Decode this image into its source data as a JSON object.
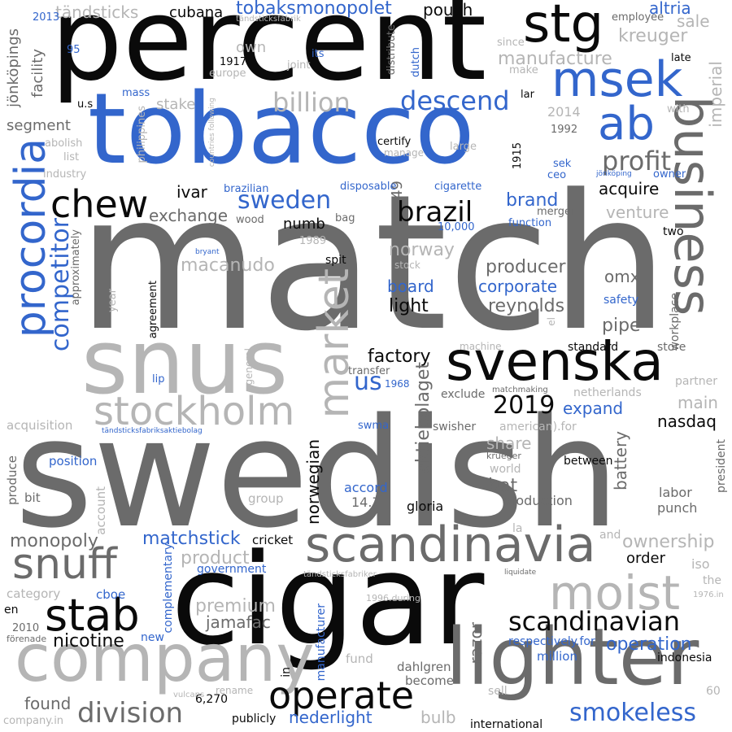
{
  "palette": {
    "black": "#0a0a0a",
    "dark_gray": "#6b6b6b",
    "light_gray": "#b5b5b5",
    "blue": "#3366cc"
  },
  "words": [
    {
      "text": "match",
      "color": "dark_gray"
    },
    {
      "text": "swedish",
      "color": "dark_gray"
    },
    {
      "text": "percent",
      "color": "black"
    },
    {
      "text": "tobacco",
      "color": "blue"
    },
    {
      "text": "cigar",
      "color": "black"
    },
    {
      "text": "snus",
      "color": "light_gray"
    },
    {
      "text": "company",
      "color": "light_gray"
    },
    {
      "text": "lighter",
      "color": "dark_gray"
    },
    {
      "text": "svenska",
      "color": "black"
    },
    {
      "text": "business",
      "color": "dark_gray"
    },
    {
      "text": "procordia",
      "color": "blue"
    },
    {
      "text": "scandinavia",
      "color": "dark_gray"
    },
    {
      "text": "market",
      "color": "light_gray"
    },
    {
      "text": "stg",
      "color": "black"
    },
    {
      "text": "msek",
      "color": "blue"
    },
    {
      "text": "ab",
      "color": "blue"
    },
    {
      "text": "stockholm",
      "color": "light_gray"
    },
    {
      "text": "snuff",
      "color": "dark_gray"
    },
    {
      "text": "moist",
      "color": "light_gray"
    },
    {
      "text": "stab",
      "color": "black"
    },
    {
      "text": "operate",
      "color": "black"
    },
    {
      "text": "chew",
      "color": "black"
    },
    {
      "text": "scandinavian",
      "color": "black"
    },
    {
      "text": "division",
      "color": "dark_gray"
    },
    {
      "text": "brazil",
      "color": "black"
    },
    {
      "text": "billion",
      "color": "light_gray"
    },
    {
      "text": "descend",
      "color": "blue"
    },
    {
      "text": "profit",
      "color": "dark_gray"
    },
    {
      "text": "competitor",
      "color": "blue"
    },
    {
      "text": "smokeless",
      "color": "blue"
    },
    {
      "text": "2019",
      "color": "black"
    },
    {
      "text": "sweden",
      "color": "blue"
    },
    {
      "text": "tobaksmonopolet",
      "color": "blue"
    },
    {
      "text": "kreuger",
      "color": "light_gray"
    },
    {
      "text": "manufacture",
      "color": "light_gray"
    },
    {
      "text": "us",
      "color": "blue"
    },
    {
      "text": "monopoly",
      "color": "dark_gray"
    },
    {
      "text": "operation",
      "color": "blue"
    },
    {
      "text": "ownership",
      "color": "light_gray"
    },
    {
      "text": "nicotine",
      "color": "black"
    },
    {
      "text": "premium",
      "color": "light_gray"
    },
    {
      "text": "matchstick",
      "color": "blue"
    },
    {
      "text": "product",
      "color": "light_gray"
    },
    {
      "text": "altria",
      "color": "blue"
    },
    {
      "text": "sale",
      "color": "light_gray"
    },
    {
      "text": "imperial",
      "color": "light_gray"
    },
    {
      "text": "factory",
      "color": "black"
    },
    {
      "text": "producer",
      "color": "dark_gray"
    },
    {
      "text": "reynolds",
      "color": "dark_gray"
    },
    {
      "text": "aktiebolaget",
      "color": "dark_gray"
    },
    {
      "text": "norwegian",
      "color": "black"
    },
    {
      "text": "battery",
      "color": "dark_gray"
    },
    {
      "text": "razor",
      "color": "dark_gray"
    },
    {
      "text": "brand",
      "color": "blue"
    },
    {
      "text": "acquire",
      "color": "black"
    },
    {
      "text": "venture",
      "color": "light_gray"
    },
    {
      "text": "exchange",
      "color": "dark_gray"
    },
    {
      "text": "ivar",
      "color": "black"
    },
    {
      "text": "board",
      "color": "blue"
    },
    {
      "text": "corporate",
      "color": "blue"
    },
    {
      "text": "light",
      "color": "black"
    },
    {
      "text": "norway",
      "color": "light_gray"
    },
    {
      "text": "macanudo",
      "color": "light_gray"
    },
    {
      "text": "pipe",
      "color": "dark_gray"
    },
    {
      "text": "omx",
      "color": "dark_gray"
    },
    {
      "text": "bat",
      "color": "dark_gray"
    },
    {
      "text": "share",
      "color": "light_gray"
    },
    {
      "text": "nasdaq",
      "color": "black"
    },
    {
      "text": "expand",
      "color": "blue"
    },
    {
      "text": "main",
      "color": "light_gray"
    },
    {
      "text": "jamafac",
      "color": "dark_gray"
    },
    {
      "text": "order",
      "color": "black"
    },
    {
      "text": "found",
      "color": "dark_gray"
    },
    {
      "text": "nederlight",
      "color": "blue"
    },
    {
      "text": "bulb",
      "color": "light_gray"
    },
    {
      "text": "cubana",
      "color": "black"
    },
    {
      "text": "tändsticks",
      "color": "light_gray"
    },
    {
      "text": "pouch",
      "color": "black"
    },
    {
      "text": "segment",
      "color": "dark_gray"
    },
    {
      "text": "stake",
      "color": "light_gray"
    },
    {
      "text": "own",
      "color": "light_gray"
    },
    {
      "text": "facility",
      "color": "dark_gray"
    },
    {
      "text": "jönköpings",
      "color": "dark_gray"
    },
    {
      "text": "2014",
      "color": "light_gray"
    },
    {
      "text": "numb",
      "color": "black"
    },
    {
      "text": "49",
      "color": "dark_gray"
    },
    {
      "text": "production",
      "color": "dark_gray"
    },
    {
      "text": "gloria",
      "color": "black"
    },
    {
      "text": "accord",
      "color": "blue"
    },
    {
      "text": "14.7",
      "color": "dark_gray"
    },
    {
      "text": "labor",
      "color": "dark_gray"
    },
    {
      "text": "punch",
      "color": "dark_gray"
    },
    {
      "text": "iso",
      "color": "light_gray"
    },
    {
      "text": "the",
      "color": "light_gray"
    },
    {
      "text": "government",
      "color": "blue"
    },
    {
      "text": "cricket",
      "color": "black"
    },
    {
      "text": "position",
      "color": "blue"
    },
    {
      "text": "produce",
      "color": "dark_gray"
    },
    {
      "text": "acquisition",
      "color": "light_gray"
    },
    {
      "text": "category",
      "color": "light_gray"
    },
    {
      "text": "bit",
      "color": "dark_gray"
    },
    {
      "text": "group",
      "color": "light_gray"
    },
    {
      "text": "account",
      "color": "light_gray"
    },
    {
      "text": "cboe",
      "color": "blue"
    },
    {
      "text": "new",
      "color": "blue"
    },
    {
      "text": "complementary",
      "color": "blue"
    },
    {
      "text": "manufacturer",
      "color": "blue"
    },
    {
      "text": "in",
      "color": "black"
    },
    {
      "text": "fund",
      "color": "light_gray"
    },
    {
      "text": "dahlgren",
      "color": "dark_gray"
    },
    {
      "text": "become",
      "color": "dark_gray"
    },
    {
      "text": "million",
      "color": "blue"
    },
    {
      "text": "respectively.for",
      "color": "blue"
    },
    {
      "text": "indonesia",
      "color": "black"
    },
    {
      "text": "international",
      "color": "black"
    },
    {
      "text": "publicly",
      "color": "black"
    },
    {
      "text": "6,270",
      "color": "black"
    },
    {
      "text": "rename",
      "color": "light_gray"
    },
    {
      "text": "vulcans",
      "color": "light_gray"
    },
    {
      "text": "company.in",
      "color": "light_gray"
    },
    {
      "text": "sell",
      "color": "light_gray"
    },
    {
      "text": "60",
      "color": "light_gray"
    },
    {
      "text": "en",
      "color": "black"
    },
    {
      "text": "2010",
      "color": "dark_gray"
    },
    {
      "text": "förenade",
      "color": "dark_gray"
    },
    {
      "text": "1996.during",
      "color": "light_gray"
    },
    {
      "text": "1976.in",
      "color": "light_gray"
    },
    {
      "text": "tändsticksfabriker",
      "color": "light_gray"
    },
    {
      "text": "liquidate",
      "color": "dark_gray"
    },
    {
      "text": "and",
      "color": "light_gray"
    },
    {
      "text": "la",
      "color": "light_gray"
    },
    {
      "text": "krueger",
      "color": "dark_gray"
    },
    {
      "text": "world",
      "color": "light_gray"
    },
    {
      "text": "between",
      "color": "black"
    },
    {
      "text": "president",
      "color": "dark_gray"
    },
    {
      "text": "swisher",
      "color": "dark_gray"
    },
    {
      "text": "american).for",
      "color": "light_gray"
    },
    {
      "text": "swma",
      "color": "blue"
    },
    {
      "text": "exclude",
      "color": "dark_gray"
    },
    {
      "text": "matchmaking",
      "color": "dark_gray"
    },
    {
      "text": "netherlands",
      "color": "light_gray"
    },
    {
      "text": "partner",
      "color": "light_gray"
    },
    {
      "text": "workplace",
      "color": "dark_gray"
    },
    {
      "text": "store",
      "color": "dark_gray"
    },
    {
      "text": "standard",
      "color": "black"
    },
    {
      "text": "machine",
      "color": "light_gray"
    },
    {
      "text": "el",
      "color": "light_gray"
    },
    {
      "text": "safety",
      "color": "blue"
    },
    {
      "text": "two",
      "color": "black"
    },
    {
      "text": "merger",
      "color": "dark_gray"
    },
    {
      "text": "function",
      "color": "blue"
    },
    {
      "text": "10,000",
      "color": "blue"
    },
    {
      "text": "stock",
      "color": "light_gray"
    },
    {
      "text": "spit",
      "color": "black"
    },
    {
      "text": "bag",
      "color": "dark_gray"
    },
    {
      "text": "wood",
      "color": "dark_gray"
    },
    {
      "text": "1989",
      "color": "light_gray"
    },
    {
      "text": "bryant",
      "color": "blue"
    },
    {
      "text": "approximately",
      "color": "dark_gray"
    },
    {
      "text": "year",
      "color": "light_gray"
    },
    {
      "text": "agreement",
      "color": "black"
    },
    {
      "text": "general",
      "color": "light_gray"
    },
    {
      "text": "lip",
      "color": "blue"
    },
    {
      "text": "transfer",
      "color": "dark_gray"
    },
    {
      "text": "1968",
      "color": "blue"
    },
    {
      "text": "tändsticksfabriksaktiebolag",
      "color": "blue"
    },
    {
      "text": "disposable",
      "color": "blue"
    },
    {
      "text": "cigarette",
      "color": "blue"
    },
    {
      "text": "brazilian",
      "color": "blue"
    },
    {
      "text": "industry",
      "color": "light_gray"
    },
    {
      "text": "list",
      "color": "light_gray"
    },
    {
      "text": "abolish",
      "color": "light_gray"
    },
    {
      "text": "philippines",
      "color": "light_gray"
    },
    {
      "text": "countries following",
      "color": "light_gray"
    },
    {
      "text": "certify",
      "color": "black"
    },
    {
      "text": "manage",
      "color": "light_gray"
    },
    {
      "text": "large",
      "color": "light_gray"
    },
    {
      "text": "1915",
      "color": "black"
    },
    {
      "text": "sek",
      "color": "blue"
    },
    {
      "text": "ceo",
      "color": "blue"
    },
    {
      "text": "jönköping",
      "color": "blue"
    },
    {
      "text": "owner",
      "color": "blue"
    },
    {
      "text": "1992",
      "color": "dark_gray"
    },
    {
      "text": "with",
      "color": "light_gray"
    },
    {
      "text": "lar",
      "color": "black"
    },
    {
      "text": "late",
      "color": "black"
    },
    {
      "text": "employee",
      "color": "dark_gray"
    },
    {
      "text": "since",
      "color": "light_gray"
    },
    {
      "text": "make",
      "color": "light_gray"
    },
    {
      "text": "dutch",
      "color": "blue"
    },
    {
      "text": "distribute",
      "color": "dark_gray"
    },
    {
      "text": "its",
      "color": "blue"
    },
    {
      "text": "joint",
      "color": "light_gray"
    },
    {
      "text": "1917",
      "color": "black"
    },
    {
      "text": "europe",
      "color": "light_gray"
    },
    {
      "text": "tändsticksfabrik",
      "color": "light_gray"
    },
    {
      "text": "2013",
      "color": "blue"
    },
    {
      "text": "95",
      "color": "blue"
    },
    {
      "text": "mass",
      "color": "blue"
    },
    {
      "text": "u.s",
      "color": "black"
    }
  ]
}
